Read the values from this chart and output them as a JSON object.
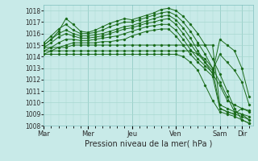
{
  "title": "",
  "xlabel": "Pression niveau de la mer( hPa )",
  "bg_color": "#c8eae8",
  "grid_color": "#a8d8d0",
  "line_color": "#1a6b1a",
  "ylim": [
    1008,
    1018.5
  ],
  "ytick_min": 1008,
  "ytick_max": 1018,
  "xtick_labels": [
    "Mar",
    "Mer",
    "Jeu",
    "Ven",
    "Sam",
    "Dir"
  ],
  "xtick_pos": [
    0,
    48,
    96,
    144,
    192,
    216
  ],
  "xlim": [
    0,
    228
  ],
  "vline_positions": [
    48,
    96,
    144,
    192,
    216
  ],
  "series": [
    [
      0,
      1015.0,
      8,
      1015.5,
      16,
      1016.2,
      24,
      1017.3,
      32,
      1016.8,
      40,
      1016.2,
      48,
      1016.1,
      56,
      1016.3,
      64,
      1016.6,
      72,
      1016.9,
      80,
      1017.1,
      88,
      1017.3,
      96,
      1017.2,
      104,
      1017.4,
      112,
      1017.6,
      120,
      1017.8,
      128,
      1018.1,
      136,
      1018.2,
      144,
      1018.0,
      152,
      1017.5,
      160,
      1016.8,
      168,
      1016.0,
      176,
      1015.0,
      184,
      1013.8,
      192,
      1012.5,
      200,
      1011.0,
      208,
      1009.5,
      216,
      1008.5,
      224,
      1008.2
    ],
    [
      0,
      1015.2,
      8,
      1015.8,
      16,
      1016.4,
      24,
      1016.8,
      32,
      1016.3,
      40,
      1016.0,
      48,
      1016.0,
      56,
      1016.1,
      64,
      1016.3,
      72,
      1016.6,
      80,
      1016.8,
      88,
      1017.0,
      96,
      1017.0,
      104,
      1017.2,
      112,
      1017.4,
      120,
      1017.6,
      128,
      1017.8,
      136,
      1017.9,
      144,
      1017.6,
      152,
      1017.0,
      160,
      1016.2,
      168,
      1015.2,
      176,
      1014.2,
      184,
      1013.0,
      192,
      1011.8,
      200,
      1010.5,
      208,
      1009.2,
      216,
      1009.0,
      224,
      1008.8
    ],
    [
      0,
      1015.0,
      8,
      1015.5,
      16,
      1016.0,
      24,
      1016.3,
      32,
      1016.0,
      40,
      1015.8,
      48,
      1015.8,
      56,
      1015.9,
      64,
      1016.0,
      72,
      1016.2,
      80,
      1016.4,
      88,
      1016.6,
      96,
      1016.7,
      104,
      1016.9,
      112,
      1017.1,
      120,
      1017.3,
      128,
      1017.5,
      136,
      1017.6,
      144,
      1017.2,
      152,
      1016.5,
      160,
      1015.6,
      168,
      1014.5,
      176,
      1013.5,
      184,
      1012.5,
      192,
      1011.5,
      200,
      1010.2,
      208,
      1009.8,
      216,
      1009.5,
      224,
      1009.3
    ],
    [
      0,
      1014.8,
      8,
      1015.2,
      16,
      1015.7,
      24,
      1016.0,
      32,
      1015.8,
      40,
      1015.6,
      48,
      1015.6,
      56,
      1015.7,
      64,
      1015.8,
      72,
      1016.0,
      80,
      1016.2,
      88,
      1016.4,
      96,
      1016.5,
      104,
      1016.7,
      112,
      1016.9,
      120,
      1017.0,
      128,
      1017.2,
      136,
      1017.3,
      144,
      1016.8,
      152,
      1016.0,
      160,
      1015.1,
      168,
      1014.2,
      176,
      1013.5,
      184,
      1012.8,
      192,
      1014.2,
      200,
      1013.5,
      208,
      1012.8,
      216,
      1011.8,
      224,
      1009.8
    ],
    [
      0,
      1014.5,
      8,
      1014.8,
      16,
      1015.2,
      24,
      1015.5,
      32,
      1015.5,
      40,
      1015.4,
      48,
      1015.4,
      56,
      1015.5,
      64,
      1015.6,
      72,
      1015.7,
      80,
      1015.8,
      88,
      1016.0,
      96,
      1016.2,
      104,
      1016.4,
      112,
      1016.6,
      120,
      1016.7,
      128,
      1016.8,
      136,
      1016.8,
      144,
      1016.3,
      152,
      1015.5,
      160,
      1014.6,
      168,
      1013.8,
      176,
      1013.2,
      184,
      1012.6,
      192,
      1015.5,
      200,
      1015.0,
      208,
      1014.5,
      216,
      1013.0,
      224,
      1010.5
    ],
    [
      0,
      1014.2,
      8,
      1014.5,
      16,
      1014.8,
      24,
      1015.0,
      32,
      1015.2,
      40,
      1015.2,
      48,
      1015.2,
      56,
      1015.2,
      64,
      1015.3,
      72,
      1015.3,
      80,
      1015.4,
      88,
      1015.5,
      96,
      1015.8,
      104,
      1016.0,
      112,
      1016.2,
      120,
      1016.3,
      128,
      1016.4,
      136,
      1016.4,
      144,
      1015.8,
      152,
      1015.0,
      160,
      1014.2,
      168,
      1013.5,
      176,
      1012.9,
      184,
      1012.3,
      192,
      1009.5,
      200,
      1009.2,
      208,
      1009.0,
      216,
      1008.8,
      224,
      1008.5
    ],
    [
      0,
      1014.8,
      8,
      1014.8,
      16,
      1014.8,
      24,
      1014.8,
      32,
      1015.0,
      40,
      1015.0,
      48,
      1015.0,
      56,
      1015.0,
      64,
      1015.0,
      72,
      1015.0,
      80,
      1015.0,
      88,
      1015.0,
      96,
      1015.0,
      104,
      1015.0,
      112,
      1015.0,
      120,
      1015.0,
      128,
      1015.0,
      136,
      1015.0,
      144,
      1015.0,
      152,
      1015.0,
      160,
      1015.0,
      168,
      1015.0,
      176,
      1015.0,
      184,
      1015.0,
      192,
      1009.8,
      200,
      1009.5,
      208,
      1009.2,
      216,
      1009.0,
      224,
      1008.5
    ],
    [
      0,
      1014.5,
      8,
      1014.5,
      16,
      1014.5,
      24,
      1014.5,
      32,
      1014.5,
      40,
      1014.5,
      48,
      1014.5,
      56,
      1014.5,
      64,
      1014.5,
      72,
      1014.5,
      80,
      1014.5,
      88,
      1014.5,
      96,
      1014.5,
      104,
      1014.5,
      112,
      1014.5,
      120,
      1014.5,
      128,
      1014.5,
      136,
      1014.5,
      144,
      1014.5,
      152,
      1014.5,
      160,
      1014.5,
      168,
      1014.2,
      176,
      1013.8,
      184,
      1013.0,
      192,
      1009.5,
      200,
      1009.2,
      208,
      1009.0,
      216,
      1009.5,
      224,
      1009.2
    ],
    [
      0,
      1014.2,
      8,
      1014.2,
      16,
      1014.2,
      24,
      1014.2,
      32,
      1014.2,
      40,
      1014.2,
      48,
      1014.2,
      56,
      1014.2,
      64,
      1014.2,
      72,
      1014.2,
      80,
      1014.2,
      88,
      1014.2,
      96,
      1014.2,
      104,
      1014.2,
      112,
      1014.2,
      120,
      1014.2,
      128,
      1014.2,
      136,
      1014.2,
      144,
      1014.2,
      152,
      1014.0,
      160,
      1013.5,
      168,
      1012.8,
      176,
      1011.5,
      184,
      1010.2,
      192,
      1009.2,
      200,
      1009.0,
      208,
      1008.8,
      216,
      1008.5,
      224,
      1008.2
    ]
  ]
}
